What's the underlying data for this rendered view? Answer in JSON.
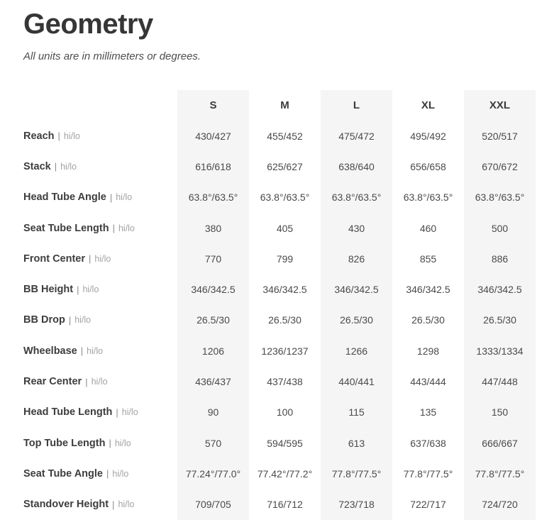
{
  "title": "Geometry",
  "subtitle": "All units are in millimeters or degrees.",
  "columns": [
    "S",
    "M",
    "L",
    "XL",
    "XXL"
  ],
  "row_suffix": {
    "separator": "|",
    "label": "hi/lo"
  },
  "rows": [
    {
      "name": "Reach",
      "values": [
        "430/427",
        "455/452",
        "475/472",
        "495/492",
        "520/517"
      ]
    },
    {
      "name": "Stack",
      "values": [
        "616/618",
        "625/627",
        "638/640",
        "656/658",
        "670/672"
      ]
    },
    {
      "name": "Head Tube Angle",
      "values": [
        "63.8°/63.5°",
        "63.8°/63.5°",
        "63.8°/63.5°",
        "63.8°/63.5°",
        "63.8°/63.5°"
      ]
    },
    {
      "name": "Seat Tube Length",
      "values": [
        "380",
        "405",
        "430",
        "460",
        "500"
      ]
    },
    {
      "name": "Front Center",
      "values": [
        "770",
        "799",
        "826",
        "855",
        "886"
      ]
    },
    {
      "name": "BB Height",
      "values": [
        "346/342.5",
        "346/342.5",
        "346/342.5",
        "346/342.5",
        "346/342.5"
      ]
    },
    {
      "name": "BB Drop",
      "values": [
        "26.5/30",
        "26.5/30",
        "26.5/30",
        "26.5/30",
        "26.5/30"
      ]
    },
    {
      "name": "Wheelbase",
      "values": [
        "1206",
        "1236/1237",
        "1266",
        "1298",
        "1333/1334"
      ]
    },
    {
      "name": "Rear Center",
      "values": [
        "436/437",
        "437/438",
        "440/441",
        "443/444",
        "447/448"
      ]
    },
    {
      "name": "Head Tube Length",
      "values": [
        "90",
        "100",
        "115",
        "135",
        "150"
      ]
    },
    {
      "name": "Top Tube Length",
      "values": [
        "570",
        "594/595",
        "613",
        "637/638",
        "666/667"
      ]
    },
    {
      "name": "Seat Tube Angle",
      "values": [
        "77.24°/77.0°",
        "77.42°/77.2°",
        "77.8°/77.5°",
        "77.8°/77.5°",
        "77.8°/77.5°"
      ]
    },
    {
      "name": "Standover Height",
      "values": [
        "709/705",
        "716/712",
        "723/718",
        "722/717",
        "724/720"
      ]
    }
  ],
  "colors": {
    "shaded_column_bg": "#f5f5f5",
    "title_text": "#363636",
    "label_text": "#3d3d3d",
    "muted_text": "#a2a2a2",
    "value_text": "#4a4a4a"
  }
}
